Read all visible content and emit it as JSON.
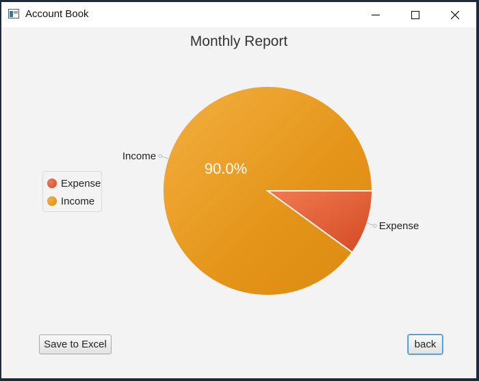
{
  "window": {
    "title": "Account Book"
  },
  "chart_data": {
    "type": "pie",
    "title": "Monthly Report",
    "categories": [
      "Expense",
      "Income"
    ],
    "values": [
      10.0,
      90.0
    ],
    "slice_labels": [
      "Expense",
      "Income"
    ],
    "percent_label": "90.0%",
    "legend": [
      "Expense",
      "Income"
    ],
    "legend_position": "left",
    "colors": {
      "Expense": "#e05a30",
      "Income": "#e8961c"
    }
  },
  "buttons": {
    "save": "Save to Excel",
    "back": "back"
  }
}
